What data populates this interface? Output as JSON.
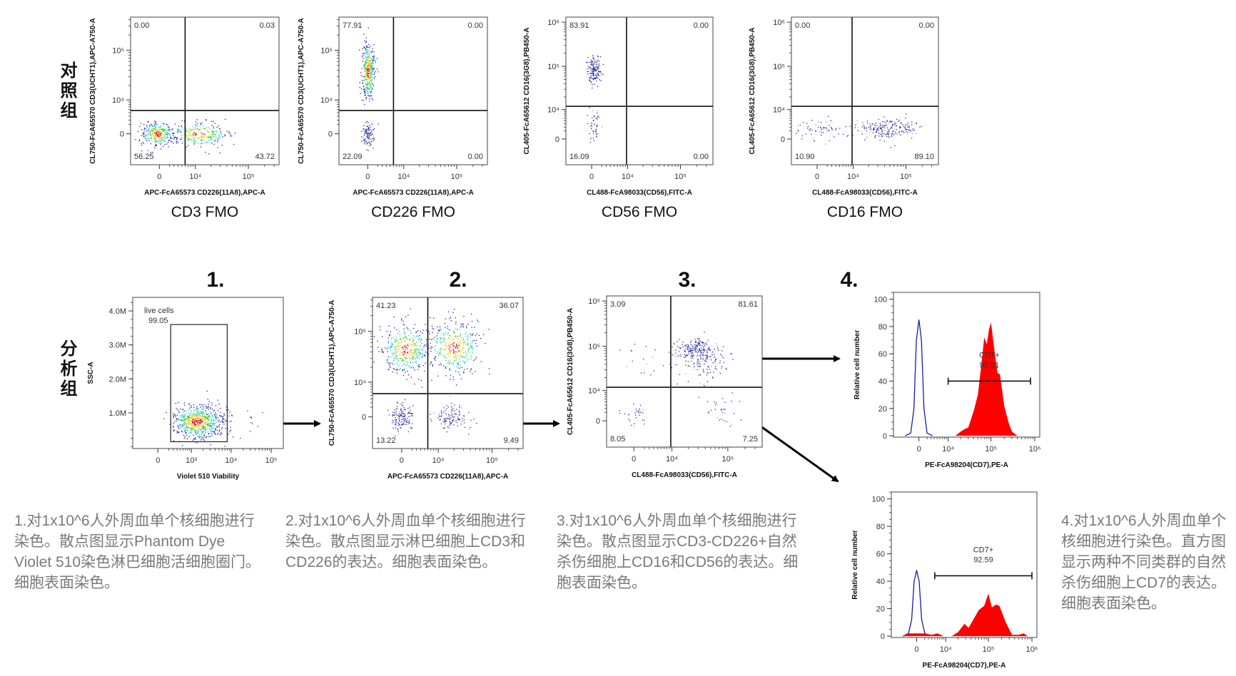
{
  "groups": {
    "control": "对照组",
    "analysis": "分析组"
  },
  "steps": [
    "1.",
    "2.",
    "3.",
    "4."
  ],
  "colors": {
    "frame": "#222222",
    "histogram_fill": "#ff0000",
    "control_line": "#1a1aa8",
    "text_gray": "#7a7a7a"
  },
  "descriptions": [
    "1.对1x10^6人外周血单个核细胞进行染色。散点图显示Phantom Dye Violet 510染色淋巴细胞活细胞圈门。细胞表面染色。",
    "2.对1x10^6人外周血单个核细胞进行染色。散点图显示淋巴细胞上CD3和CD226的表达。细胞表面染色。",
    "3.对1x10^6人外周血单个核细胞进行染色。散点图显示CD3-CD226+自然杀伤细胞上CD16和CD56的表达。细胞表面染色。",
    "4.对1x10^6人外周血单个核细胞进行染色。直方图显示两种不同类群的自然杀伤细胞上CD7的表达。细胞表面染色。"
  ],
  "chart_data": [
    {
      "type": "scatter",
      "title": "CD3 FMO",
      "x_axis": {
        "label": "APC-FcA65573 CD226(11A8),APC-A",
        "scale": "biexponential",
        "range": [
          -7000,
          370000
        ],
        "ticks": [
          {
            "value": 0,
            "label": "0"
          },
          {
            "value": 10000,
            "label": "10⁴"
          },
          {
            "value": 100000,
            "label": "10⁵"
          }
        ]
      },
      "y_axis": {
        "label": "CL750-FcA65570 CD3(UCHT1),APC-A750-A",
        "scale": "biexponential",
        "range": [
          -8600,
          450000
        ],
        "ticks": [
          {
            "value": 0,
            "label": "0"
          },
          {
            "value": 10000,
            "label": "10⁴"
          },
          {
            "value": 100000,
            "label": "10⁵"
          }
        ]
      },
      "gate": {
        "x": 6000,
        "y": 5700
      },
      "quadrants": [
        "0.00",
        "0.03",
        "56.25",
        "43.72"
      ],
      "populations": [
        {
          "x_range": [
            -4000,
            3000
          ],
          "y_range": [
            -2500,
            2500
          ],
          "events": 300
        },
        {
          "x_range": [
            2000,
            40000
          ],
          "y_range": [
            -2500,
            2500
          ],
          "events": 260
        }
      ]
    },
    {
      "type": "scatter",
      "title": "CD226 FMO",
      "x_axis": {
        "label": "APC-FcA65573 CD226(11A8),APC-A",
        "scale": "biexponential",
        "range": [
          -7000,
          370000
        ],
        "ticks": [
          {
            "value": 0,
            "label": "0"
          },
          {
            "value": 10000,
            "label": "10⁴"
          },
          {
            "value": 100000,
            "label": "10⁵"
          }
        ]
      },
      "y_axis": {
        "label": "CL750-FcA65570 CD3(UCHT1),APC-A750-A",
        "scale": "biexponential",
        "range": [
          -8600,
          450000
        ],
        "ticks": [
          {
            "value": 0,
            "label": "0"
          },
          {
            "value": 10000,
            "label": "10⁴"
          },
          {
            "value": 100000,
            "label": "10⁵"
          }
        ]
      },
      "gate": {
        "x": 6000,
        "y": 5700
      },
      "quadrants": [
        "77.91",
        "0.00",
        "22.09",
        "0.00"
      ],
      "populations": [
        {
          "x_range": [
            -1200,
            1200
          ],
          "y_range": [
            10000,
            150000
          ],
          "events": 380
        },
        {
          "x_range": [
            -1200,
            1200
          ],
          "y_range": [
            -2500,
            2500
          ],
          "events": 120
        }
      ]
    },
    {
      "type": "scatter",
      "title": "CD56 FMO",
      "x_axis": {
        "label": "CL488-FcA98033(CD56),FITC-A",
        "scale": "biexponential",
        "range": [
          -6000,
          400000
        ],
        "ticks": [
          {
            "value": 0,
            "label": "0"
          },
          {
            "value": 10000,
            "label": "10⁴"
          },
          {
            "value": 100000,
            "label": "10⁵"
          }
        ]
      },
      "y_axis": {
        "label": "CL405-FcA65612 CD16(3G8),PB450-A",
        "scale": "biexponential",
        "range": [
          -8000,
          1300000
        ],
        "ticks": [
          {
            "value": 0,
            "label": "0"
          },
          {
            "value": 10000,
            "label": "10⁴"
          },
          {
            "value": 100000,
            "label": "10⁵"
          },
          {
            "value": 1000000,
            "label": "10⁶"
          }
        ]
      },
      "gate": {
        "x": 9500,
        "y": 12000
      },
      "quadrants": [
        "83.91",
        "0.00",
        "16.09",
        "0.00"
      ],
      "populations": [
        {
          "x_range": [
            -800,
            1800
          ],
          "y_range": [
            40000,
            160000
          ],
          "events": 160
        },
        {
          "x_range": [
            -800,
            1800
          ],
          "y_range": [
            -1000,
            12000
          ],
          "events": 50
        }
      ]
    },
    {
      "type": "scatter",
      "title": "CD16 FMO",
      "x_axis": {
        "label": "CL488-FcA98033(CD56),FITC-A",
        "scale": "biexponential",
        "range": [
          -6000,
          400000
        ],
        "ticks": [
          {
            "value": 0,
            "label": "0"
          },
          {
            "value": 10000,
            "label": "10⁴"
          },
          {
            "value": 100000,
            "label": "10⁵"
          }
        ]
      },
      "y_axis": {
        "label": "CL405-FcA65612 CD16(3G8),PB450-A",
        "scale": "biexponential",
        "range": [
          -8000,
          1300000
        ],
        "ticks": [
          {
            "value": 0,
            "label": "0"
          },
          {
            "value": 10000,
            "label": "10⁴"
          },
          {
            "value": 100000,
            "label": "10⁵"
          },
          {
            "value": 1000000,
            "label": "10⁶"
          }
        ]
      },
      "gate": {
        "x": 9500,
        "y": 12000
      },
      "quadrants": [
        "0.00",
        "0.00",
        "10.90",
        "89.10"
      ],
      "populations": [
        {
          "x_range": [
            -5000,
            8000
          ],
          "y_range": [
            0,
            6000
          ],
          "events": 60
        },
        {
          "x_range": [
            10000,
            150000
          ],
          "y_range": [
            0,
            6000
          ],
          "events": 220
        }
      ]
    },
    {
      "type": "scatter",
      "x_axis": {
        "label": "Violet 510 Viability",
        "scale": "biexponential",
        "range": [
          -600,
          200000
        ],
        "ticks": [
          {
            "value": 0,
            "label": "0"
          },
          {
            "value": 1000,
            "label": "10³"
          },
          {
            "value": 10000,
            "label": "10⁴"
          },
          {
            "value": 100000,
            "label": "10⁵"
          }
        ]
      },
      "y_axis": {
        "label": "SSC-A",
        "scale": "linear",
        "range": [
          -50000,
          4400000
        ],
        "ticks": [
          {
            "value": 1000000,
            "label": "1.0M"
          },
          {
            "value": 2000000,
            "label": "2.0M"
          },
          {
            "value": 3000000,
            "label": "3.0M"
          },
          {
            "value": 4000000,
            "label": "4.0M"
          }
        ]
      },
      "gate_rect": {
        "name": "live cells",
        "value": "99.05",
        "x": [
          240,
          8000
        ],
        "y": [
          150000,
          3600000
        ]
      },
      "populations": [
        {
          "x_range": [
            250,
            6000
          ],
          "y_range": [
            250000,
            1250000
          ],
          "events": 650
        },
        {
          "x_range": [
            -300,
            60000
          ],
          "y_range": [
            200000,
            1100000
          ],
          "events": 60
        }
      ]
    },
    {
      "type": "scatter",
      "x_axis": {
        "label": "APC-FcA65573 CD226(11A8),APC-A",
        "scale": "biexponential",
        "range": [
          -7000,
          370000
        ],
        "ticks": [
          {
            "value": 0,
            "label": "0"
          },
          {
            "value": 10000,
            "label": "10⁴"
          },
          {
            "value": 100000,
            "label": "10⁵"
          }
        ]
      },
      "y_axis": {
        "label": "CL750-FcA65570 CD3(UCHT1),APC-A750-A",
        "scale": "biexponential",
        "range": [
          -8600,
          450000
        ],
        "ticks": [
          {
            "value": 0,
            "label": "0"
          },
          {
            "value": 10000,
            "label": "10⁴"
          },
          {
            "value": 100000,
            "label": "10⁵"
          }
        ]
      },
      "gate": {
        "x": 6000,
        "y": 5500
      },
      "quadrants": [
        "41.23",
        "36.07",
        "13.22",
        "9.49"
      ],
      "populations": [
        {
          "x_range": [
            -4000,
            6000
          ],
          "y_range": [
            15000,
            140000
          ],
          "events": 380
        },
        {
          "x_range": [
            6000,
            60000
          ],
          "y_range": [
            15000,
            160000
          ],
          "events": 380
        },
        {
          "x_range": [
            -2000,
            2000
          ],
          "y_range": [
            -3000,
            3000
          ],
          "events": 140
        },
        {
          "x_range": [
            8000,
            35000
          ],
          "y_range": [
            -3000,
            3000
          ],
          "events": 120
        }
      ]
    },
    {
      "type": "scatter",
      "x_axis": {
        "label": "CL488-FcA98033(CD56),FITC-A",
        "scale": "biexponential",
        "range": [
          -6000,
          400000
        ],
        "ticks": [
          {
            "value": 0,
            "label": "0"
          },
          {
            "value": 10000,
            "label": "10⁴"
          },
          {
            "value": 100000,
            "label": "10⁵"
          }
        ]
      },
      "y_axis": {
        "label": "CL405-FcA65612 CD16(3G8),PB450-A",
        "scale": "biexponential",
        "range": [
          -8000,
          1300000
        ],
        "ticks": [
          {
            "value": 0,
            "label": "0"
          },
          {
            "value": 10000,
            "label": "10⁴"
          },
          {
            "value": 100000,
            "label": "10⁵"
          },
          {
            "value": 1000000,
            "label": "10⁶"
          }
        ]
      },
      "gate": {
        "x": 9500,
        "y": 12000
      },
      "quadrants": [
        "3.09",
        "81.61",
        "8.05",
        "7.25"
      ],
      "populations": [
        {
          "x_range": [
            12000,
            60000
          ],
          "y_range": [
            50000,
            150000
          ],
          "events": 200
        },
        {
          "x_range": [
            10000,
            120000
          ],
          "y_range": [
            15000,
            120000
          ],
          "events": 110
        },
        {
          "x_range": [
            -3000,
            6000
          ],
          "y_range": [
            20000,
            150000
          ],
          "events": 15
        },
        {
          "x_range": [
            -2500,
            3000
          ],
          "y_range": [
            -1000,
            5000
          ],
          "events": 30
        },
        {
          "x_range": [
            40000,
            130000
          ],
          "y_range": [
            -2000,
            7000
          ],
          "events": 30
        }
      ]
    },
    {
      "type": "area",
      "x_axis": {
        "label": "PE-FcA98204(CD7),PE-A",
        "scale": "biexponential",
        "range": [
          -8000,
          1300000
        ],
        "ticks": [
          {
            "value": 0,
            "label": "0"
          },
          {
            "value": 10000,
            "label": "10⁴"
          },
          {
            "value": 100000,
            "label": "10⁵"
          },
          {
            "value": 1000000,
            "label": "10⁶"
          }
        ]
      },
      "y_axis": {
        "label": "Relative cell number",
        "scale": "linear",
        "range": [
          -1,
          105
        ],
        "ticks": [
          {
            "value": 0,
            "label": "0"
          },
          {
            "value": 20,
            "label": "20"
          },
          {
            "value": 40,
            "label": "40"
          },
          {
            "value": 60,
            "label": "60"
          },
          {
            "value": 80,
            "label": "80"
          },
          {
            "value": 100,
            "label": "100"
          }
        ]
      },
      "marker": {
        "name": "CD7+",
        "value": "99.51",
        "x": [
          10000,
          800000
        ],
        "y": 40
      },
      "series": [
        {
          "role": "control",
          "x": [
            -3500,
            -2000,
            -1200,
            -600,
            0,
            600,
            1200,
            2000,
            3500
          ],
          "y": [
            0,
            2,
            20,
            70,
            85,
            70,
            20,
            2,
            0
          ]
        },
        {
          "role": "sample",
          "x": [
            15000,
            20000,
            25000,
            30000,
            40000,
            50000,
            60000,
            70000,
            80000,
            90000,
            100000,
            120000,
            140000,
            160000,
            200000,
            250000,
            300000,
            400000
          ],
          "y": [
            0,
            3,
            5,
            6,
            18,
            30,
            52,
            72,
            67,
            78,
            83,
            62,
            46,
            45,
            22,
            10,
            3,
            0
          ]
        }
      ]
    },
    {
      "type": "area",
      "x_axis": {
        "label": "PE-FcA98204(CD7),PE-A",
        "scale": "biexponential",
        "range": [
          -8000,
          1300000
        ],
        "ticks": [
          {
            "value": 0,
            "label": "0"
          },
          {
            "value": 10000,
            "label": "10⁴"
          },
          {
            "value": 100000,
            "label": "10⁵"
          },
          {
            "value": 1000000,
            "label": "10⁶"
          }
        ]
      },
      "y_axis": {
        "label": "Relative cell number",
        "scale": "linear",
        "range": [
          -1,
          105
        ],
        "ticks": [
          {
            "value": 0,
            "label": "0"
          },
          {
            "value": 20,
            "label": "20"
          },
          {
            "value": 40,
            "label": "40"
          },
          {
            "value": 60,
            "label": "60"
          },
          {
            "value": 80,
            "label": "80"
          },
          {
            "value": 100,
            "label": "100"
          }
        ]
      },
      "marker": {
        "name": "CD7+",
        "value": "92.59",
        "x": [
          5000,
          1000000
        ],
        "y": 44
      },
      "series": [
        {
          "role": "control",
          "x": [
            -3500,
            -2000,
            -1200,
            -600,
            0,
            600,
            1200,
            2000,
            3500
          ],
          "y": [
            0,
            2,
            12,
            40,
            48,
            40,
            12,
            2,
            0
          ]
        },
        {
          "role": "sample",
          "x": [
            -4000,
            -2000,
            0,
            2000,
            4000,
            6000,
            9000,
            14000,
            20000,
            28000,
            35000,
            45000,
            60000,
            80000,
            100000,
            120000,
            150000,
            180000,
            250000,
            350000,
            500000,
            650000,
            800000
          ],
          "y": [
            0,
            2,
            2,
            2,
            1,
            2,
            0,
            0,
            3,
            9,
            6,
            12,
            19,
            22,
            31,
            21,
            23,
            22,
            10,
            1,
            1,
            2,
            0
          ]
        }
      ]
    }
  ]
}
